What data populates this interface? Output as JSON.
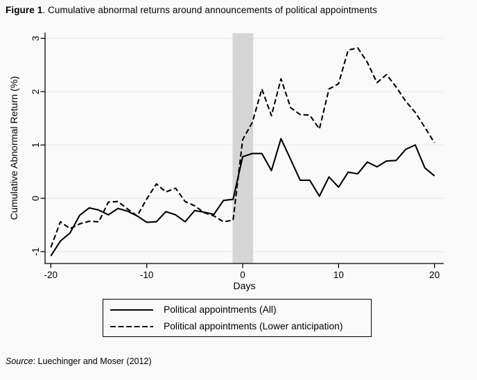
{
  "figure": {
    "title_prefix": "Figure 1",
    "title_rest": ". Cumulative abnormal returns around announcements of political appointments"
  },
  "legend": {
    "items": [
      {
        "label": "Political appointments (All)",
        "style": "solid"
      },
      {
        "label": "Political appointments (Lower anticipation)",
        "style": "dashed"
      }
    ]
  },
  "source": {
    "prefix": "Source",
    "rest": ": Luechinger and Moser (2012)"
  },
  "chart_data": {
    "type": "line",
    "title": "Figure 1. Cumulative abnormal returns around announcements of political appointments",
    "xlabel": "Days",
    "ylabel": "Cumulative Abnormal Return (%)",
    "x_ticks": [
      -20,
      -10,
      0,
      10,
      20
    ],
    "y_ticks": [
      -1,
      0,
      1,
      2,
      3
    ],
    "xlim": [
      -20.6,
      21.0
    ],
    "ylim": [
      -1.22,
      3.09
    ],
    "grid": true,
    "grid_color": "#e3eaef",
    "line_color": "#000000",
    "shaded_band": {
      "x_from": -1.05,
      "x_to": 1.1,
      "color": "#d5d5d5",
      "meaning": "announcement window"
    },
    "legend_position": "bottom",
    "x": [
      -20,
      -19,
      -18,
      -17,
      -16,
      -15,
      -14,
      -13,
      -12,
      -11,
      -10,
      -9,
      -8,
      -7,
      -6,
      -5,
      -4,
      -3,
      -2,
      -1,
      0,
      1,
      2,
      3,
      4,
      5,
      6,
      7,
      8,
      9,
      10,
      11,
      12,
      13,
      14,
      15,
      16,
      17,
      18,
      19,
      20
    ],
    "series": [
      {
        "name": "Political appointments (All)",
        "style": "solid",
        "values": [
          -1.08,
          -0.8,
          -0.65,
          -0.32,
          -0.18,
          -0.22,
          -0.31,
          -0.19,
          -0.24,
          -0.33,
          -0.45,
          -0.44,
          -0.25,
          -0.31,
          -0.44,
          -0.23,
          -0.26,
          -0.3,
          -0.04,
          -0.02,
          0.78,
          0.84,
          0.84,
          0.52,
          1.12,
          0.73,
          0.34,
          0.34,
          0.04,
          0.4,
          0.21,
          0.49,
          0.46,
          0.68,
          0.59,
          0.7,
          0.71,
          0.92,
          1.0,
          0.57,
          0.42
        ]
      },
      {
        "name": "Political appointments (Lower anticipation)",
        "style": "dashed",
        "values": [
          -0.92,
          -0.44,
          -0.57,
          -0.48,
          -0.43,
          -0.44,
          -0.07,
          -0.06,
          -0.2,
          -0.33,
          -0.01,
          0.27,
          0.12,
          0.19,
          -0.06,
          -0.14,
          -0.27,
          -0.33,
          -0.44,
          -0.41,
          1.1,
          1.42,
          2.05,
          1.55,
          2.24,
          1.7,
          1.57,
          1.56,
          1.3,
          2.05,
          2.15,
          2.78,
          2.82,
          2.55,
          2.17,
          2.32,
          2.09,
          1.82,
          1.61,
          1.33,
          1.04
        ]
      }
    ]
  }
}
